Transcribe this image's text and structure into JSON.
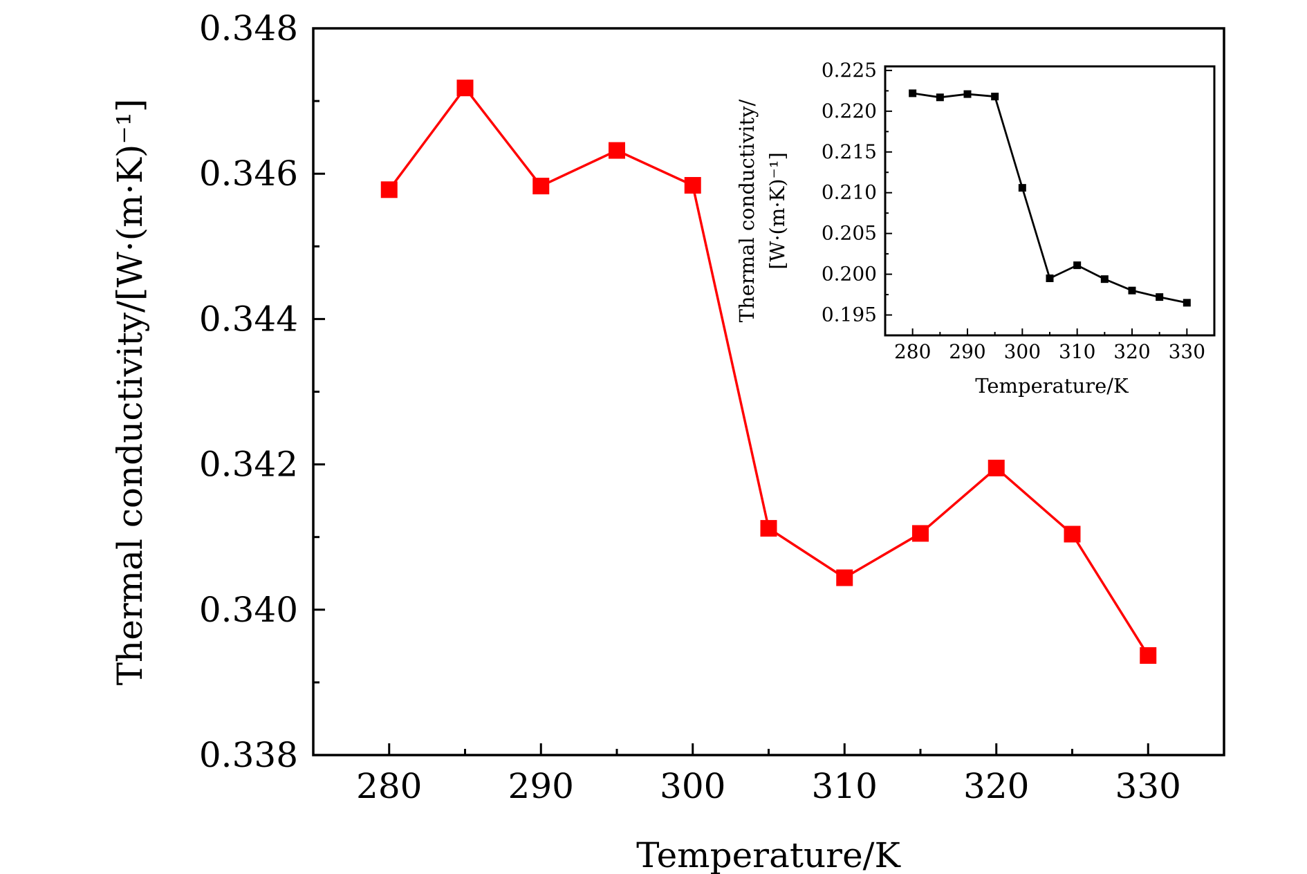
{
  "chart_data": [
    {
      "type": "line",
      "role": "main",
      "xlabel": "Temperature/K",
      "ylabel": "Thermal conductivity/[W·(m·K)⁻¹]",
      "xlim": [
        275,
        335
      ],
      "ylim": [
        0.338,
        0.348
      ],
      "xticks": [
        280,
        290,
        300,
        310,
        320,
        330
      ],
      "yticks": [
        0.338,
        0.34,
        0.342,
        0.344,
        0.346,
        0.348
      ],
      "ytick_labels": [
        "0.338",
        "0.340",
        "0.342",
        "0.344",
        "0.346",
        "0.348"
      ],
      "color": "#ff0000",
      "marker": "square",
      "series": [
        {
          "name": "Thermal conductivity",
          "x": [
            280,
            285,
            290,
            295,
            300,
            305,
            310,
            315,
            320,
            325,
            330
          ],
          "y": [
            0.34578,
            0.34718,
            0.34583,
            0.34632,
            0.34584,
            0.34112,
            0.34044,
            0.34105,
            0.34195,
            0.34104,
            0.33937
          ]
        }
      ]
    },
    {
      "type": "line",
      "role": "inset",
      "xlabel": "Temperature/K",
      "ylabel_line1": "Thermal conductivity/",
      "ylabel_line2": "[W·(m·K)⁻¹]",
      "xlim": [
        275,
        335
      ],
      "ylim": [
        0.1925,
        0.2255
      ],
      "xticks": [
        280,
        290,
        300,
        310,
        320,
        330
      ],
      "yticks": [
        0.195,
        0.2,
        0.205,
        0.21,
        0.215,
        0.22,
        0.225
      ],
      "ytick_labels": [
        "0.195",
        "0.200",
        "0.205",
        "0.210",
        "0.215",
        "0.220",
        "0.225"
      ],
      "color": "#000000",
      "marker": "square",
      "series": [
        {
          "name": "Thermal conductivity",
          "x": [
            280,
            285,
            290,
            295,
            300,
            305,
            310,
            315,
            320,
            325,
            330
          ],
          "y": [
            0.2222,
            0.2217,
            0.2221,
            0.2218,
            0.2106,
            0.1995,
            0.2011,
            0.1994,
            0.198,
            0.1972,
            0.1965
          ]
        }
      ]
    }
  ]
}
